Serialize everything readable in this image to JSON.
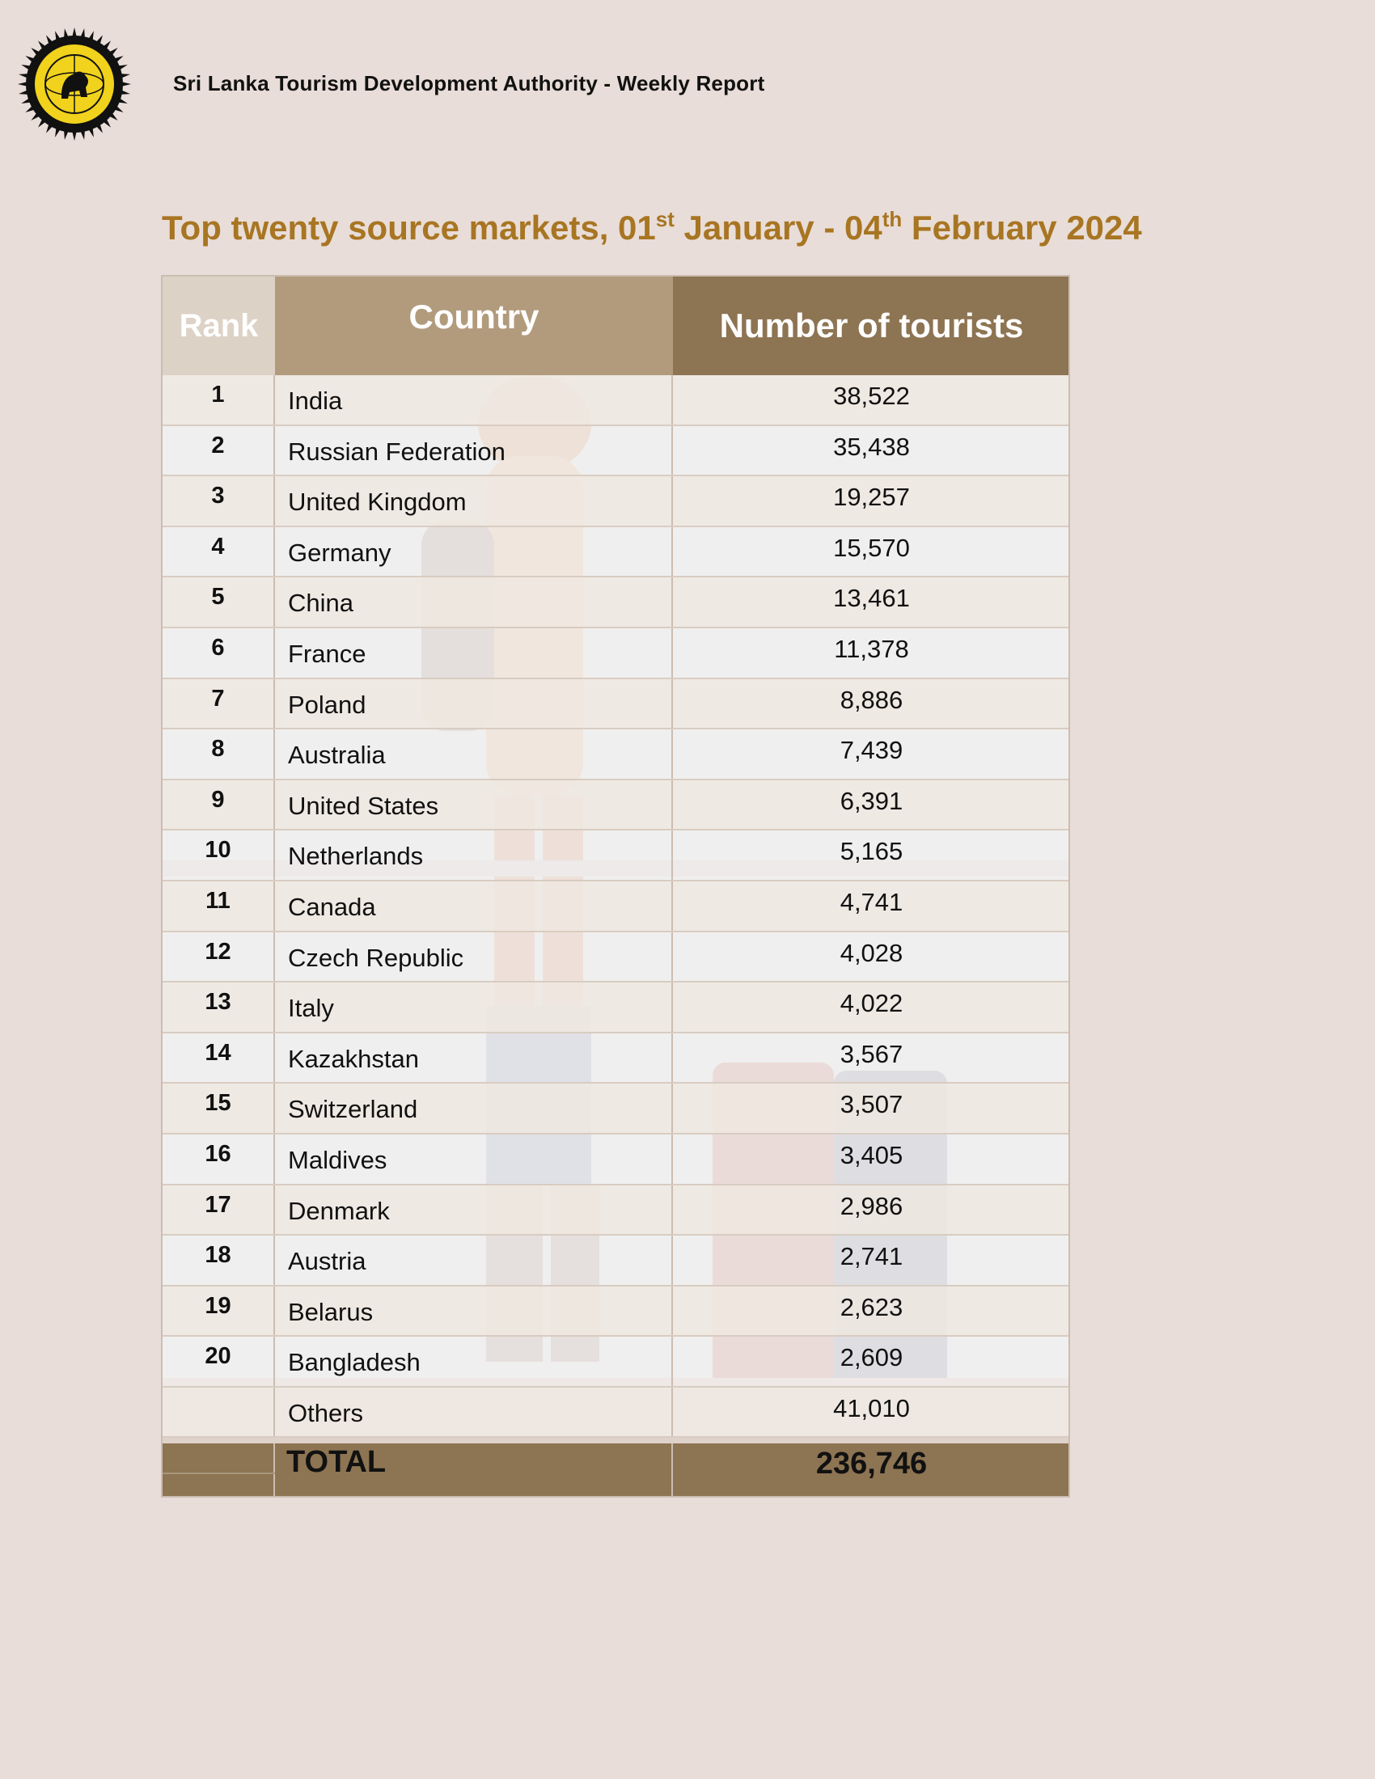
{
  "header": {
    "org_report": "Sri Lanka Tourism Development Authority  - Weekly Report",
    "logo_icon": "sltda-sun-lion-emblem-icon"
  },
  "title": {
    "prefix": "Top twenty  source markets, 01",
    "sup1": "st",
    "middle": " January - 04",
    "sup2": "th",
    "suffix": " February 2024"
  },
  "table": {
    "columns": {
      "rank": "Rank",
      "country": "Country",
      "number": "Number of tourists"
    },
    "rows": [
      {
        "rank": "1",
        "country": "India",
        "number": "38,522"
      },
      {
        "rank": "2",
        "country": "Russian Federation",
        "number": "35,438"
      },
      {
        "rank": "3",
        "country": "United Kingdom",
        "number": "19,257"
      },
      {
        "rank": "4",
        "country": "Germany",
        "number": "15,570"
      },
      {
        "rank": "5",
        "country": "China",
        "number": "13,461"
      },
      {
        "rank": "6",
        "country": "France",
        "number": "11,378"
      },
      {
        "rank": "7",
        "country": "Poland",
        "number": "8,886"
      },
      {
        "rank": "8",
        "country": "Australia",
        "number": "7,439"
      },
      {
        "rank": "9",
        "country": "United States",
        "number": "6,391"
      },
      {
        "rank": "10",
        "country": "Netherlands",
        "number": "5,165"
      },
      {
        "rank": "11",
        "country": "Canada",
        "number": "4,741"
      },
      {
        "rank": "12",
        "country": "Czech Republic",
        "number": "4,028"
      },
      {
        "rank": "13",
        "country": "Italy",
        "number": "4,022"
      },
      {
        "rank": "14",
        "country": "Kazakhstan",
        "number": "3,567"
      },
      {
        "rank": "15",
        "country": "Switzerland",
        "number": "3,507"
      },
      {
        "rank": "16",
        "country": "Maldives",
        "number": "3,405"
      },
      {
        "rank": "17",
        "country": "Denmark",
        "number": "2,986"
      },
      {
        "rank": "18",
        "country": "Austria",
        "number": "2,741"
      },
      {
        "rank": "19",
        "country": "Belarus",
        "number": "2,623"
      },
      {
        "rank": "20",
        "country": "Bangladesh",
        "number": "2,609"
      },
      {
        "rank": "",
        "country": "Others",
        "number": "41,010"
      }
    ],
    "total": {
      "label": "TOTAL",
      "number": "236,746"
    }
  },
  "colors": {
    "page_bg": "#e8ddd8",
    "title": "#a87522",
    "header_rank": "#ddd2c6",
    "header_country": "#b29b7c",
    "header_number": "#8d7452",
    "total_row": "#8d7452"
  }
}
